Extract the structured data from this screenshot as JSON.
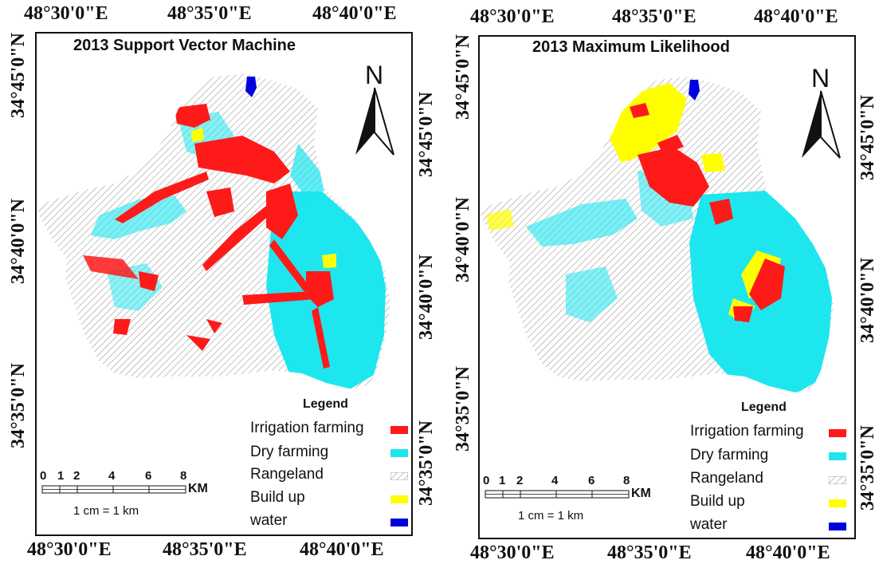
{
  "maps": [
    {
      "title": "2013 Support Vector Machine",
      "top_ticks": [
        "48°30'0\"E",
        "48°35'0\"E",
        "48°40'0\"E"
      ],
      "bottom_ticks": [
        "48°30'0\"E",
        "48°35'0\"E",
        "48°40'0\"E"
      ],
      "left_ticks": [
        "34°45'0\"N",
        "34°40'0\"N",
        "34°35'0\"N"
      ],
      "right_ticks": [
        "34°45'0\"N",
        "34°40'0\"N",
        "34°35'0\"N"
      ]
    },
    {
      "title": "2013 Maximum Likelihood",
      "top_ticks": [
        "48°30'0\"E",
        "48°35'0\"E",
        "48°40'0\"E"
      ],
      "bottom_ticks": [
        "48°30'0\"E",
        "48°35'0\"E",
        "48°40'0\"E"
      ],
      "left_ticks": [
        "34°45'0\"N",
        "34°40'0\"N",
        "34°35'0\"N"
      ],
      "right_ticks": [
        "34°45'0\"N",
        "34°40'0\"N",
        "34°35'0\"N"
      ]
    }
  ],
  "north_label": "N",
  "legend": {
    "title": "Legend",
    "items": [
      {
        "label": "Irrigation farming",
        "color": "#ff1a1a"
      },
      {
        "label": "Dry farming",
        "color": "#1ee6ef"
      },
      {
        "label": "Rangeland",
        "color": "hatched-gray"
      },
      {
        "label": "Build up",
        "color": "#ffff00"
      },
      {
        "label": "water",
        "color": "#0000dd"
      }
    ]
  },
  "scale": {
    "numbers": [
      "0",
      "1",
      "2",
      "4",
      "6",
      "8"
    ],
    "unit": "KM",
    "ratio": "1 cm = 1 km"
  },
  "colors": {
    "irrigation": "#ff1a1a",
    "dry": "#1ee6ef",
    "buildup": "#ffff00",
    "water": "#0000dd",
    "rangeland_hatch": "#9a9a9a"
  }
}
